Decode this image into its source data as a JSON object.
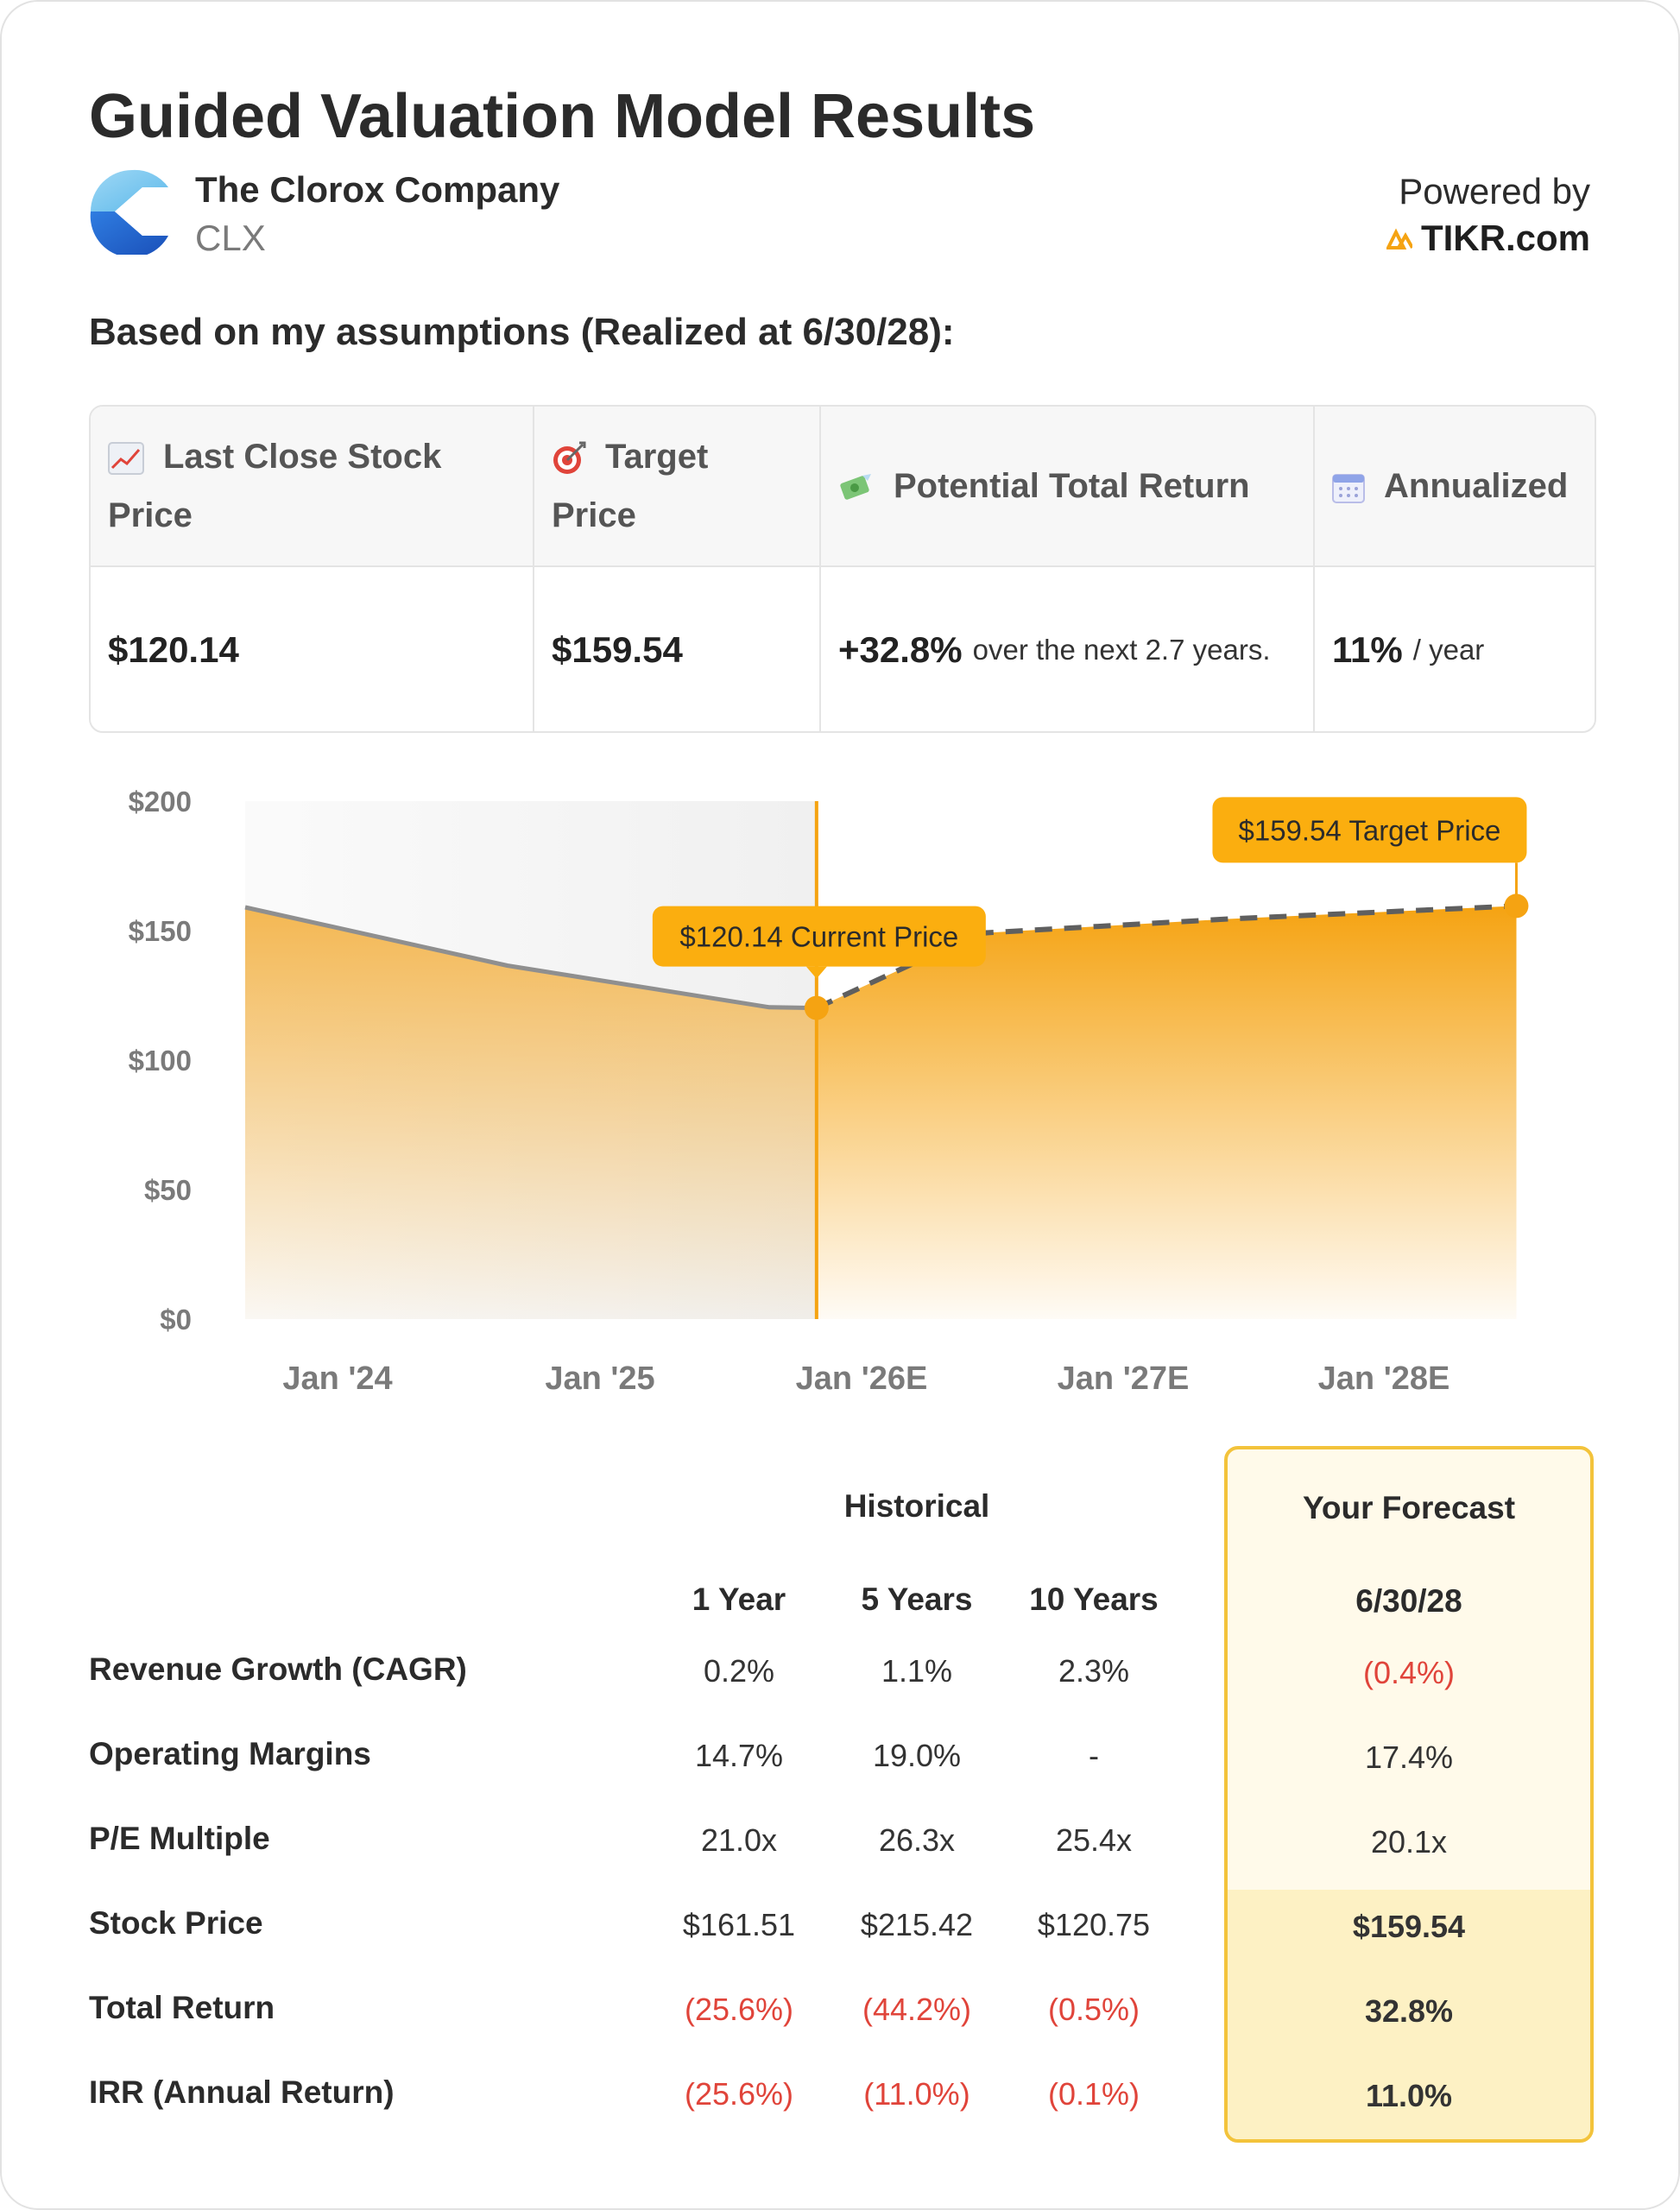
{
  "header": {
    "title": "Guided Valuation Model Results",
    "company": "The Clorox Company",
    "ticker": "CLX",
    "powered_by": "Powered by",
    "brand": "TIKR.com"
  },
  "assumptions_heading": "Based on my assumptions (Realized at 6/30/28):",
  "summary": {
    "last_close_label": "Last Close Stock Price",
    "last_close_value": "$120.14",
    "target_label": "Target Price",
    "target_value": "$159.54",
    "return_label": "Potential Total Return",
    "return_value": "+32.8%",
    "return_note": "over the next 2.7 years.",
    "annualized_label": "Annualized",
    "annualized_value": "11%",
    "annualized_unit": "/ year"
  },
  "chart_data": {
    "type": "area",
    "title": "",
    "x_ticks": [
      "Jan '24",
      "Jan '25",
      "Jan '26E",
      "Jan '27E",
      "Jan '28E"
    ],
    "y_ticks": [
      "$0",
      "$50",
      "$100",
      "$150",
      "$200"
    ],
    "ylim": [
      0,
      200
    ],
    "xlim": [
      2023.65,
      2028.65
    ],
    "historical": {
      "x": [
        2023.65,
        2024.65,
        2025.65,
        2025.83
      ],
      "y": [
        159,
        136.5,
        120.4,
        120.14
      ]
    },
    "forecast": {
      "x": [
        2025.83,
        2026.45,
        2027.4,
        2028.5
      ],
      "y": [
        120.14,
        149,
        154.5,
        159.54
      ]
    },
    "current_marker": {
      "x": 2025.83,
      "y": 120.14,
      "label": "$120.14 Current Price"
    },
    "target_marker": {
      "x": 2028.5,
      "y": 159.54,
      "label": "$159.54 Target Price"
    },
    "colors": {
      "accent": "#f5a312",
      "line": "#8f8f8f",
      "dash": "#5f5f5f",
      "label_bg": "#fbae0f"
    }
  },
  "metrics": {
    "historical_heading": "Historical",
    "forecast_heading": "Your Forecast",
    "columns": [
      "1 Year",
      "5 Years",
      "10 Years"
    ],
    "forecast_column": "6/30/28",
    "rows": [
      {
        "label": "Revenue Growth (CAGR)",
        "values": [
          "0.2%",
          "1.1%",
          "2.3%"
        ],
        "forecast": "(0.4%)"
      },
      {
        "label": "Operating Margins",
        "values": [
          "14.7%",
          "19.0%",
          "-"
        ],
        "forecast": "17.4%"
      },
      {
        "label": "P/E Multiple",
        "values": [
          "21.0x",
          "26.3x",
          "25.4x"
        ],
        "forecast": "20.1x"
      },
      {
        "label": "Stock Price",
        "values": [
          "$161.51",
          "$215.42",
          "$120.75"
        ],
        "forecast": "$159.54"
      },
      {
        "label": "Total Return",
        "values": [
          "(25.6%)",
          "(44.2%)",
          "(0.5%)"
        ],
        "forecast": "32.8%"
      },
      {
        "label": "IRR (Annual Return)",
        "values": [
          "(25.6%)",
          "(11.0%)",
          "(0.1%)"
        ],
        "forecast": "11.0%"
      }
    ]
  }
}
